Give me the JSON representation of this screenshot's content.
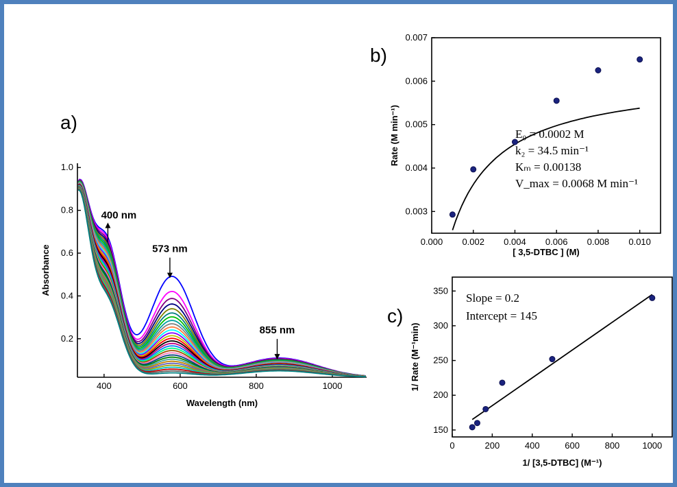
{
  "panels": {
    "a": "a)",
    "b": "b)",
    "c": "c)"
  },
  "chart_data": [
    {
      "id": "a",
      "type": "line",
      "xlabel": "Wavelength (nm)",
      "ylabel": "Absorbance",
      "xlim": [
        330,
        1090
      ],
      "ylim": [
        0.02,
        1.02
      ],
      "xticks": [
        "400",
        "600",
        "800",
        "1000"
      ],
      "xtick_values": [
        400,
        600,
        800,
        1000
      ],
      "yticks": [
        "0.2",
        "0.4",
        "0.6",
        "0.8",
        "1.0"
      ],
      "ytick_values": [
        0.2,
        0.4,
        0.6,
        0.8,
        1.0
      ],
      "annotations": [
        {
          "text": "400 nm",
          "x": 410,
          "y": 0.64,
          "direction": "up"
        },
        {
          "text": "573 nm",
          "x": 573,
          "y": 0.47,
          "direction": "down"
        },
        {
          "text": "855 nm",
          "x": 855,
          "y": 0.09,
          "direction": "down"
        }
      ],
      "curve_count": 30,
      "series_model": {
        "final": {
          "a400": 0.63,
          "a573": 0.47,
          "a855": 0.09
        },
        "initial": {
          "a400": 0.36,
          "a573": 0.02,
          "a855": 0.03
        }
      },
      "colors": [
        "#0000ff",
        "#ff00ff",
        "#800080",
        "#000080",
        "#808000",
        "#008080",
        "#00c000",
        "#00a0a0",
        "#808080",
        "#ff8040",
        "#00ffff",
        "#8000ff",
        "#c0c000",
        "#ff0000",
        "#000000",
        "#c00080",
        "#0080ff",
        "#00ff80",
        "#a05000",
        "#ff80c0",
        "#004080",
        "#008000",
        "#40a0a0",
        "#c08000",
        "#6060c0",
        "#a0a000",
        "#00c0c0",
        "#c00000",
        "#606060",
        "#008080"
      ]
    },
    {
      "id": "b",
      "type": "scatter",
      "xlabel": "[ 3,5-DTBC ] (M)",
      "ylabel": "Rate (M min⁻¹)",
      "xlim": [
        0,
        0.011
      ],
      "ylim": [
        0.0025,
        0.007
      ],
      "xticks": [
        "0.000",
        "0.002",
        "0.004",
        "0.006",
        "0.008",
        "0.010"
      ],
      "xtick_values": [
        0,
        0.002,
        0.004,
        0.006,
        0.008,
        0.01
      ],
      "yticks": [
        "0.003",
        "0.004",
        "0.005",
        "0.006",
        "0.007"
      ],
      "ytick_values": [
        0.003,
        0.004,
        0.005,
        0.006,
        0.007
      ],
      "points": {
        "x": [
          0.001,
          0.002,
          0.004,
          0.006,
          0.008,
          0.01
        ],
        "y": [
          0.00293,
          0.00397,
          0.0046,
          0.00555,
          0.00625,
          0.0065
        ]
      },
      "fit": {
        "type": "michaelis-menten",
        "vmax": 0.0068,
        "km": 0.00138,
        "x_range": [
          0.001,
          0.01
        ]
      },
      "annotations": [
        "E₀ = 0.0002 M",
        "k₂ = 34.5 min⁻¹",
        "Kₘ = 0.00138",
        "V_max = 0.0068 M min⁻¹"
      ]
    },
    {
      "id": "c",
      "type": "scatter",
      "xlabel": "1/ [3,5-DTBC] (M⁻¹)",
      "ylabel": "1/ Rate (M⁻¹min)",
      "xlim": [
        0,
        1100
      ],
      "ylim": [
        140,
        370
      ],
      "xticks": [
        "0",
        "200",
        "400",
        "600",
        "800",
        "1000"
      ],
      "xtick_values": [
        0,
        200,
        400,
        600,
        800,
        1000
      ],
      "yticks": [
        "150",
        "200",
        "250",
        "300",
        "350"
      ],
      "ytick_values": [
        150,
        200,
        250,
        300,
        350
      ],
      "points": {
        "x": [
          100,
          125,
          167,
          250,
          500,
          1000
        ],
        "y": [
          154,
          160,
          180,
          218,
          252,
          340
        ]
      },
      "fit": {
        "type": "linear",
        "slope": 0.2,
        "intercept": 145,
        "x_range": [
          100,
          1000
        ]
      },
      "annotations": [
        "Slope = 0.2",
        "Intercept = 145"
      ]
    }
  ]
}
